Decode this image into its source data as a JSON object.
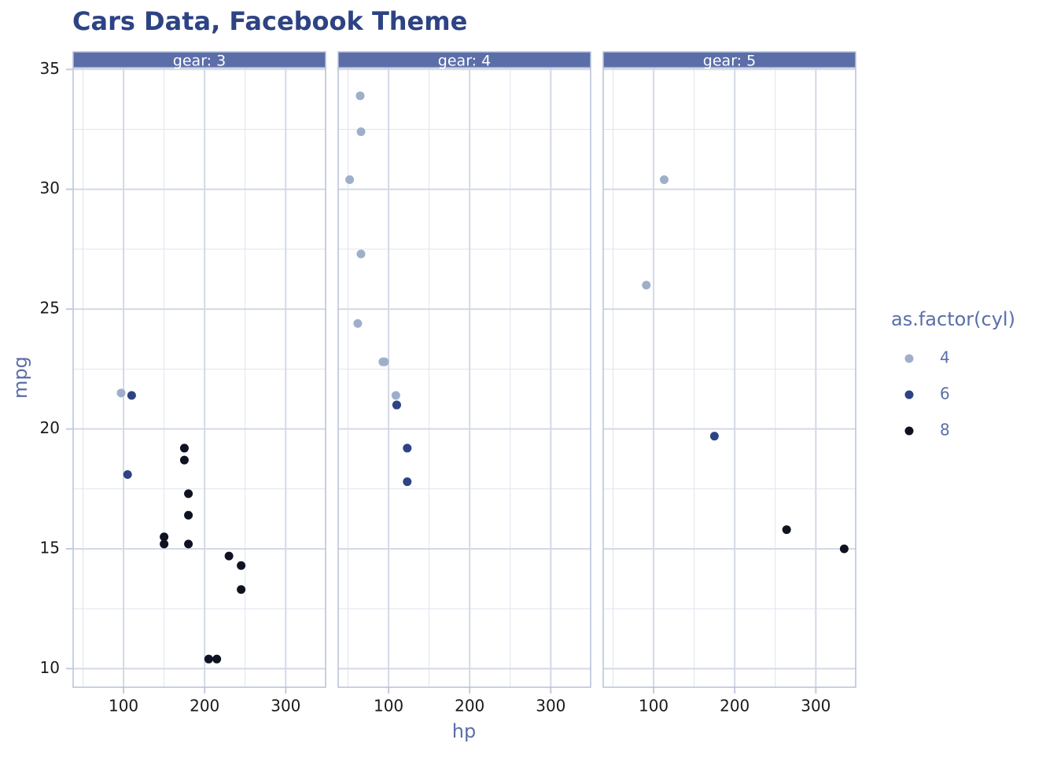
{
  "chart_data": {
    "type": "scatter",
    "title": "Cars Data, Facebook Theme",
    "xlabel": "hp",
    "ylabel": "mpg",
    "legend_title": "as.factor(cyl)",
    "legend": "right",
    "grid": true,
    "xlim": [
      37.85,
      349.15
    ],
    "xticks": [
      100,
      200,
      300
    ],
    "xminor": [
      50,
      150,
      250
    ],
    "ylim": [
      9.225,
      35.075
    ],
    "yticks": [
      10,
      15,
      20,
      25,
      30,
      35
    ],
    "yminor": [
      12.5,
      17.5,
      22.5,
      27.5,
      32.5
    ],
    "groups": [
      {
        "name": "4",
        "color": "#9eafca"
      },
      {
        "name": "6",
        "color": "#2d4384"
      },
      {
        "name": "8",
        "color": "#0f1321"
      }
    ],
    "facets": [
      {
        "label": "gear: 3",
        "series": [
          {
            "x": [
              97
            ],
            "y": [
              21.5
            ]
          },
          {
            "x": [
              110,
              105
            ],
            "y": [
              21.4,
              18.1
            ]
          },
          {
            "x": [
              175,
              245,
              180,
              180,
              180,
              205,
              215,
              230,
              150,
              150,
              245,
              175
            ],
            "y": [
              18.7,
              14.3,
              16.4,
              17.3,
              15.2,
              10.4,
              10.4,
              14.7,
              15.5,
              15.2,
              13.3,
              19.2
            ]
          }
        ]
      },
      {
        "label": "gear: 4",
        "series": [
          {
            "x": [
              93,
              62,
              95,
              66,
              52,
              65,
              66,
              109
            ],
            "y": [
              22.8,
              24.4,
              22.8,
              32.4,
              30.4,
              33.9,
              27.3,
              21.4
            ]
          },
          {
            "x": [
              110,
              110,
              123,
              123
            ],
            "y": [
              21.0,
              21.0,
              19.2,
              17.8
            ]
          },
          {
            "x": [],
            "y": []
          }
        ]
      },
      {
        "label": "gear: 5",
        "series": [
          {
            "x": [
              91,
              113
            ],
            "y": [
              26.0,
              30.4
            ]
          },
          {
            "x": [
              175
            ],
            "y": [
              19.7
            ]
          },
          {
            "x": [
              264,
              335
            ],
            "y": [
              15.8,
              15.0
            ]
          }
        ]
      }
    ]
  }
}
